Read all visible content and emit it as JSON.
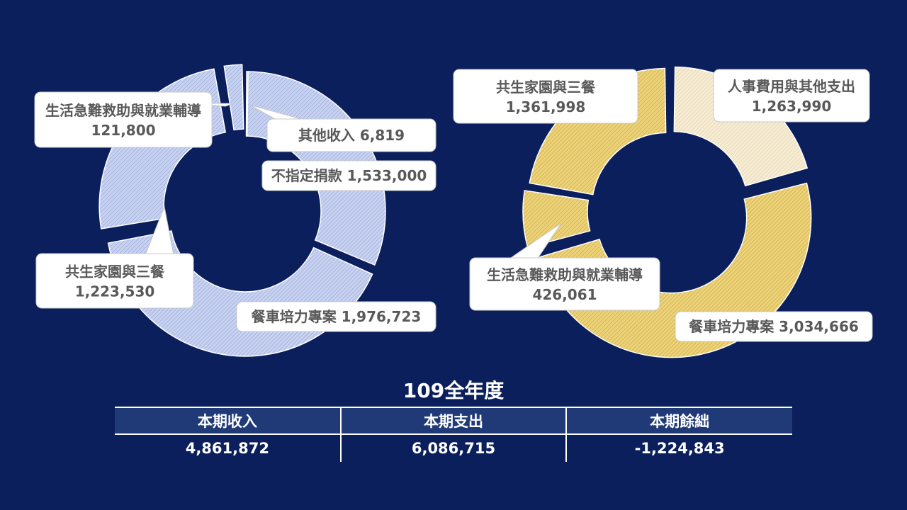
{
  "colors": {
    "background": "#0b1f5c",
    "income": "#c9d3f0",
    "expense": "#ecd27a",
    "expense_light": "#f3e6c4"
  },
  "chart_data": [
    {
      "type": "pie",
      "categories": [
        "不指定捐款",
        "餐車培力專案",
        "共生家園與三餐",
        "生活急難救助與就業輔導",
        "其他收入"
      ],
      "values": [
        1533000,
        1976723,
        1223530,
        121800,
        6819
      ],
      "callouts": [
        {
          "label": "不指定捐款",
          "value": "1,533,000"
        },
        {
          "label": "餐車培力專案",
          "value": "1,976,723"
        },
        {
          "label": "共生家園與三餐",
          "value": "1,223,530"
        },
        {
          "label": "生活急難救助與就業輔導",
          "value": "121,800"
        },
        {
          "label": "其他收入",
          "value": "6,819"
        }
      ]
    },
    {
      "type": "pie",
      "categories": [
        "人事費用與其他支出",
        "餐車培力專案",
        "生活急難救助與就業輔導",
        "共生家園與三餐"
      ],
      "values": [
        1263990,
        3034666,
        426061,
        1361998
      ],
      "callouts": [
        {
          "label": "人事費用與其他支出",
          "value": "1,263,990"
        },
        {
          "label": "餐車培力專案",
          "value": "3,034,666"
        },
        {
          "label": "生活急難救助與就業輔導",
          "value": "426,061"
        },
        {
          "label": "共生家園與三餐",
          "value": "1,361,998"
        }
      ]
    }
  ],
  "title": "109全年度",
  "table": {
    "headers": [
      "本期收入",
      "本期支出",
      "本期餘絀"
    ],
    "values": [
      "4,861,872",
      "6,086,715",
      "-1,224,843"
    ]
  }
}
